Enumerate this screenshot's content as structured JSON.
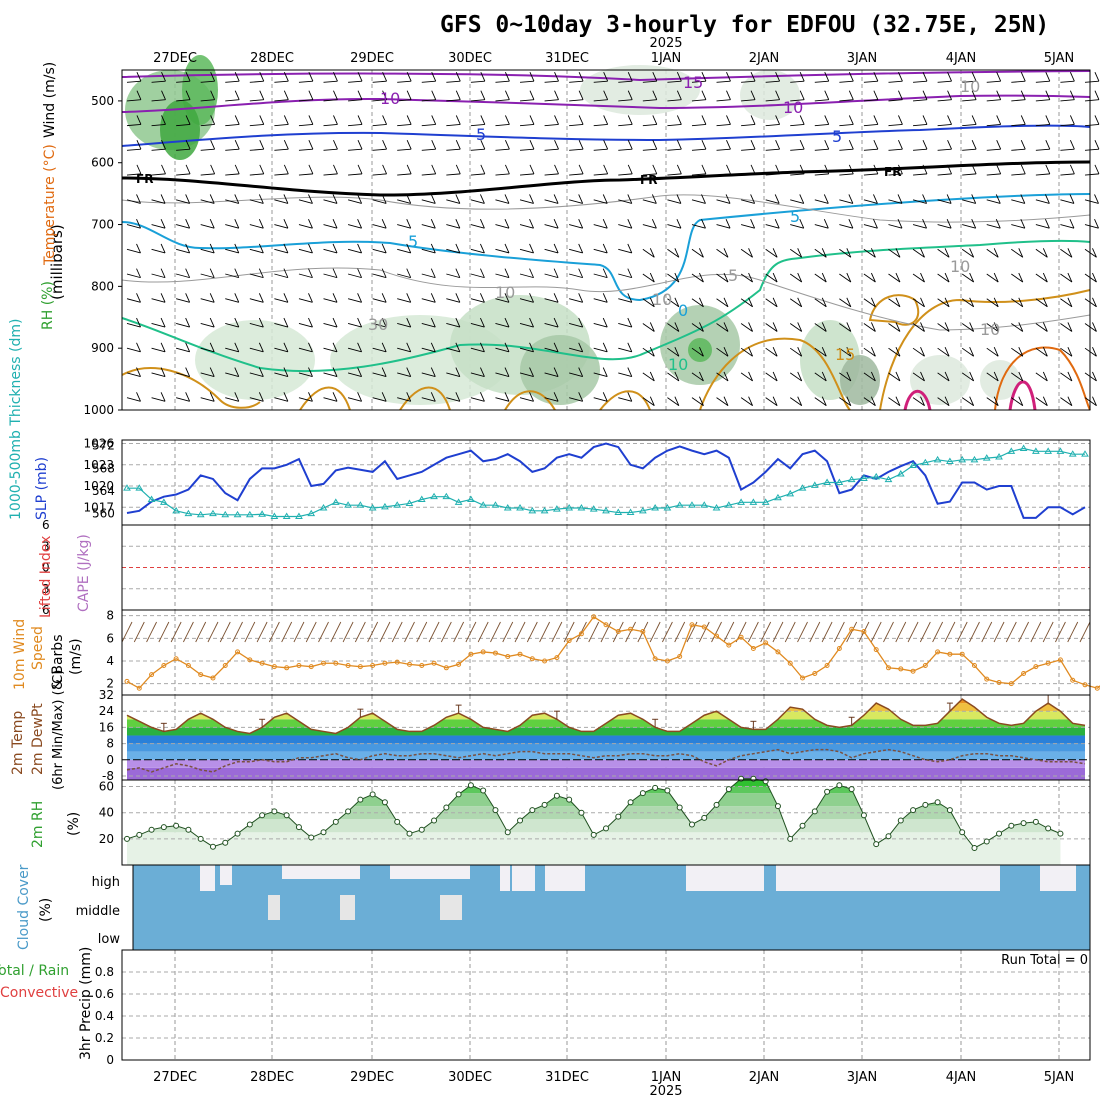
{
  "title": "GFS 0~10day 3-hourly for EDFOU (32.75E, 25N)",
  "year_label": "2025",
  "date_labels": [
    "27DEC",
    "28DEC",
    "29DEC",
    "30DEC",
    "31DEC",
    "1JAN",
    "2JAN",
    "3JAN",
    "4JAN",
    "5JAN"
  ],
  "panels": {
    "upper": {
      "ylabel": "(millibars)",
      "side_labels": [
        "Wind (m/s)",
        "Temperature (°C)",
        "RH (%)"
      ],
      "ticks": [
        500,
        600,
        700,
        800,
        900,
        1000
      ],
      "contour_labels": [
        "15",
        "10",
        "10",
        "5",
        "5",
        "FR",
        "FR",
        "FR",
        "5",
        "5",
        "10",
        "0",
        "10",
        "15",
        "10",
        "30",
        "10",
        "10",
        "10",
        "5"
      ]
    },
    "thickness": {
      "left_label": "1000-500mb Thickness (dm)",
      "right_label": "SLP (mb)",
      "left_ticks": [
        560,
        564,
        568,
        572
      ],
      "right_ticks": [
        1017,
        1020,
        1023,
        1026
      ]
    },
    "stability": {
      "left_label": "Lifted Index",
      "right_label": "CAPE (J/kg)",
      "ticks": [
        "6",
        "3",
        "0",
        "3",
        "6"
      ]
    },
    "wind": {
      "labels": [
        "10m Wind",
        "Speed",
        "& Barbs",
        "(m/s)"
      ],
      "ticks": [
        2,
        4,
        6,
        8
      ]
    },
    "temp": {
      "labels": [
        "2m Temp",
        "2m DewPt",
        "(6hr Min/Max) (°C)"
      ],
      "ticks": [
        -8,
        0,
        8,
        16,
        24,
        32
      ]
    },
    "rh": {
      "labels": [
        "2m RH",
        "(%)"
      ],
      "ticks": [
        20,
        40,
        60
      ]
    },
    "cloud": {
      "label": "Cloud Cover",
      "unit": "(%)",
      "levels": [
        "high",
        "middle",
        "low"
      ]
    },
    "precip": {
      "labels": [
        "Total / Rain",
        "Convective",
        "3hr Precip (mm)"
      ],
      "ticks": [
        "0",
        "0.2",
        "0.4",
        "0.6",
        "0.8"
      ],
      "run_total": "Run Total = 0"
    }
  },
  "chart_data": [
    {
      "type": "line",
      "title": "1000-500mb Thickness / SLP",
      "series": [
        {
          "name": "SLP (mb)",
          "color": "#1f3fd0",
          "values": [
            1016.2,
            1016.5,
            1017.8,
            1018.5,
            1018.8,
            1019.5,
            1021.5,
            1021.0,
            1019.0,
            1018.0,
            1021.0,
            1022.5,
            1022.5,
            1023.0,
            1023.8,
            1020.0,
            1020.3,
            1022.2,
            1022.6,
            1022.3,
            1022.0,
            1023.5,
            1021.0,
            1021.5,
            1022.0,
            1023.0,
            1024.0,
            1024.5,
            1025.0,
            1023.5,
            1023.8,
            1024.5,
            1023.5,
            1022.0,
            1022.5,
            1024.0,
            1024.5,
            1024.0,
            1025.5,
            1026.0,
            1025.5,
            1023.0,
            1022.5,
            1024.0,
            1025.0,
            1025.6,
            1025.0,
            1024.5,
            1025.0,
            1024.0,
            1019.5,
            1020.5,
            1022.0,
            1023.8,
            1022.5,
            1024.5,
            1025.0,
            1023.5,
            1019.0,
            1019.5,
            1021.5,
            1021.0,
            1022.0,
            1022.8,
            1023.5,
            1021.5,
            1017.5,
            1017.8,
            1020.5,
            1020.5,
            1019.5,
            1020.0,
            1020.0,
            1015.5,
            1015.5,
            1017.0,
            1017.0,
            1016.0,
            1017.0
          ]
        },
        {
          "name": "1000-500mb Thickness (dm)",
          "color": "#20b0b0",
          "values": [
            564.5,
            564.5,
            562.5,
            562.0,
            560.5,
            560.0,
            559.8,
            560.0,
            559.8,
            559.8,
            559.8,
            559.9,
            559.5,
            559.5,
            559.5,
            560.0,
            561.0,
            562.0,
            561.5,
            561.5,
            561.0,
            561.2,
            561.5,
            561.8,
            562.5,
            563.0,
            563.0,
            562.0,
            562.5,
            561.5,
            561.5,
            561.0,
            561.0,
            560.5,
            560.5,
            560.8,
            561.0,
            561.0,
            560.8,
            560.5,
            560.2,
            560.2,
            560.5,
            561.0,
            561.0,
            561.5,
            561.5,
            561.5,
            561.0,
            561.5,
            562.0,
            562.0,
            562.0,
            562.8,
            563.5,
            564.5,
            565.0,
            565.5,
            565.5,
            566.0,
            566.2,
            566.5,
            566.0,
            567.0,
            568.5,
            569.0,
            569.5,
            569.2,
            569.5,
            569.5,
            569.8,
            570.0,
            571.0,
            571.5,
            571.0,
            571.0,
            571.0,
            570.5,
            570.5
          ]
        }
      ],
      "ylim_left": [
        558,
        573
      ],
      "ylim_right": [
        1014.5,
        1026.5
      ]
    },
    {
      "type": "line",
      "title": "10m Wind Speed",
      "series": [
        {
          "name": "10m Wind Speed (m/s)",
          "color": "#e08a20",
          "values": [
            2.2,
            1.6,
            2.8,
            3.6,
            4.2,
            3.6,
            2.8,
            2.5,
            3.6,
            4.8,
            4.1,
            3.8,
            3.5,
            3.4,
            3.6,
            3.5,
            3.8,
            3.8,
            3.6,
            3.5,
            3.6,
            3.8,
            3.9,
            3.7,
            3.6,
            3.8,
            3.4,
            3.7,
            4.6,
            4.8,
            4.7,
            4.4,
            4.6,
            4.2,
            4.0,
            4.3,
            5.8,
            6.4,
            7.9,
            7.2,
            6.6,
            6.8,
            6.6,
            4.2,
            4.0,
            4.4,
            7.2,
            7.0,
            6.2,
            5.4,
            6.1,
            5.1,
            5.6,
            4.8,
            3.8,
            2.5,
            2.9,
            3.6,
            5.1,
            6.8,
            6.6,
            5.0,
            3.4,
            3.3,
            3.1,
            3.6,
            4.8,
            4.6,
            4.6,
            3.6,
            2.4,
            2.1,
            2.0,
            2.9,
            3.5,
            3.8,
            4.1,
            2.3,
            1.9,
            1.6,
            2.5
          ]
        }
      ],
      "ylim": [
        1,
        8.5
      ]
    },
    {
      "type": "area",
      "title": "2m Temp / DewPt",
      "series": [
        {
          "name": "2m Temp (°C)",
          "color": "#8a4a20",
          "values": [
            22,
            19,
            16,
            14,
            15,
            20,
            23,
            20,
            16,
            14,
            13,
            16,
            21,
            23,
            19,
            15,
            14,
            13,
            16,
            21,
            23,
            19,
            15,
            14,
            14,
            17,
            21,
            23,
            20,
            16,
            15,
            14,
            17,
            22,
            23,
            20,
            16,
            14,
            14,
            18,
            22,
            23,
            20,
            16,
            14,
            14,
            18,
            22,
            24,
            20,
            16,
            15,
            15,
            20,
            26,
            25,
            20,
            17,
            16,
            17,
            22,
            28,
            25,
            20,
            17,
            17,
            18,
            24,
            30,
            26,
            21,
            18,
            17,
            18,
            24,
            28,
            24,
            18,
            17
          ]
        },
        {
          "name": "2m DewPt (°C)",
          "color": "#7a5040",
          "values": [
            -5,
            -4,
            -6,
            -4,
            -2,
            -3,
            -5,
            -6,
            -3,
            -1,
            -1,
            0,
            -1,
            -1,
            1,
            1,
            2,
            3,
            1,
            0,
            2,
            3,
            2,
            2,
            3,
            3,
            2,
            1,
            2,
            3,
            2,
            3,
            4,
            4,
            3,
            3,
            3,
            2,
            1,
            2,
            2,
            3,
            3,
            2,
            2,
            3,
            2,
            -1,
            -3,
            0,
            2,
            3,
            4,
            5,
            3,
            4,
            5,
            5,
            4,
            1,
            3,
            4,
            5,
            4,
            2,
            0,
            -1,
            0,
            2,
            3,
            3,
            2,
            2,
            1,
            0,
            -1,
            -1,
            -1,
            -2
          ]
        }
      ],
      "ylim": [
        -10,
        32
      ]
    },
    {
      "type": "area",
      "title": "2m RH",
      "series": [
        {
          "name": "2m RH (%)",
          "color": "#40a040",
          "values": [
            20,
            23,
            27,
            29,
            30,
            27,
            20,
            14,
            17,
            24,
            31,
            38,
            41,
            38,
            29,
            21,
            25,
            33,
            41,
            50,
            54,
            48,
            33,
            24,
            27,
            34,
            44,
            54,
            61,
            57,
            42,
            25,
            34,
            42,
            46,
            53,
            50,
            40,
            23,
            28,
            37,
            48,
            55,
            59,
            57,
            44,
            31,
            36,
            46,
            58,
            66,
            66,
            64,
            45,
            20,
            30,
            41,
            56,
            61,
            58,
            38,
            16,
            22,
            34,
            42,
            46,
            48,
            42,
            25,
            13,
            18,
            24,
            30,
            32,
            33,
            28,
            24
          ]
        }
      ],
      "ylim": [
        0,
        65
      ]
    },
    {
      "type": "bar",
      "title": "3hr Precip",
      "series": [
        {
          "name": "3hr Precip (mm)",
          "values": [
            0,
            0,
            0,
            0,
            0,
            0,
            0,
            0,
            0,
            0
          ]
        }
      ],
      "categories": [
        "27DEC",
        "28DEC",
        "29DEC",
        "30DEC",
        "31DEC",
        "1JAN",
        "2JAN",
        "3JAN",
        "4JAN",
        "5JAN"
      ],
      "ylim": [
        0,
        1
      ],
      "run_total": 0
    }
  ]
}
